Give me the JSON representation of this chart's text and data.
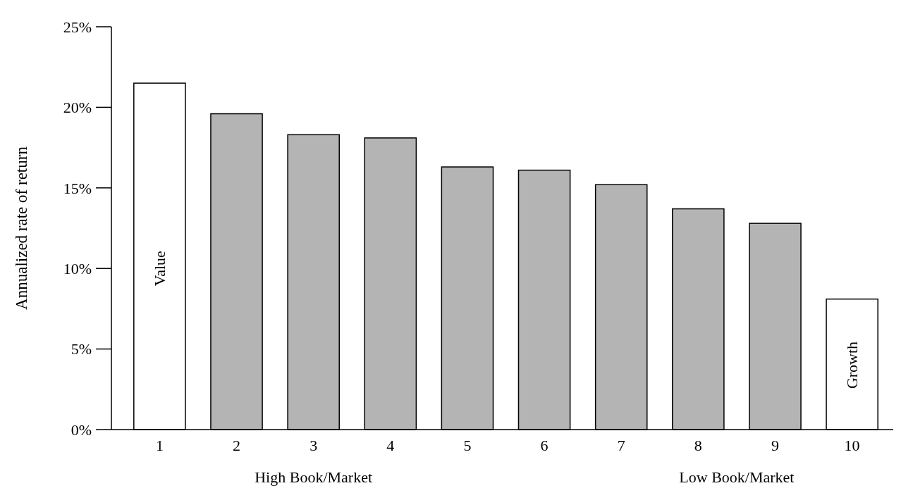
{
  "chart_data": {
    "type": "bar",
    "ylabel": "Annualized rate of return",
    "categories": [
      "1",
      "2",
      "3",
      "4",
      "5",
      "6",
      "7",
      "8",
      "9",
      "10"
    ],
    "values": [
      21.5,
      19.6,
      18.3,
      18.1,
      16.3,
      16.1,
      15.2,
      13.7,
      12.8,
      8.1
    ],
    "colors": [
      "#ffffff",
      "#b4b4b4",
      "#b4b4b4",
      "#b4b4b4",
      "#b4b4b4",
      "#b4b4b4",
      "#b4b4b4",
      "#b4b4b4",
      "#b4b4b4",
      "#ffffff"
    ],
    "ylim": [
      0,
      25
    ],
    "yticks": [
      {
        "value": 0,
        "label": "0%"
      },
      {
        "value": 5,
        "label": "5%"
      },
      {
        "value": 10,
        "label": "10%"
      },
      {
        "value": 15,
        "label": "15%"
      },
      {
        "value": 20,
        "label": "20%"
      },
      {
        "value": 25,
        "label": "25%"
      }
    ],
    "grid": false,
    "annotations": [
      "Value",
      "Growth",
      "High Book/Market",
      "Low Book/Market"
    ]
  }
}
